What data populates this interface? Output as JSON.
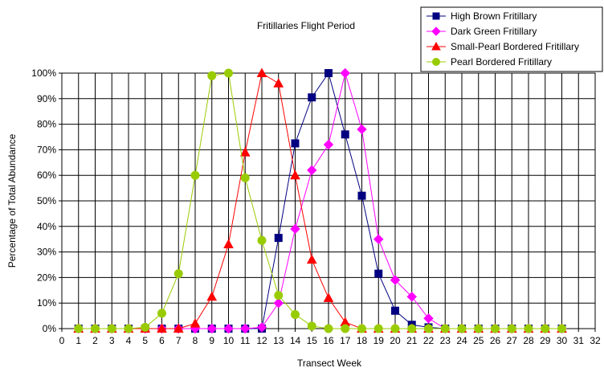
{
  "chart_data": {
    "type": "line",
    "title": "Fritillaries Flight Period",
    "xlabel": "Transect Week",
    "ylabel": "Percentage of Total Abundance",
    "xlim": [
      0,
      32
    ],
    "ylim": [
      0,
      100
    ],
    "x_ticks": [
      0,
      1,
      2,
      3,
      4,
      5,
      6,
      7,
      8,
      9,
      10,
      11,
      12,
      13,
      14,
      15,
      16,
      17,
      18,
      19,
      20,
      21,
      22,
      23,
      24,
      25,
      26,
      27,
      28,
      29,
      30,
      31,
      32
    ],
    "y_ticks": [
      0,
      10,
      20,
      30,
      40,
      50,
      60,
      70,
      80,
      90,
      100
    ],
    "y_tick_format": "percent",
    "grid": true,
    "legend_position": "top-right",
    "x": [
      1,
      2,
      3,
      4,
      5,
      6,
      7,
      8,
      9,
      10,
      11,
      12,
      13,
      14,
      15,
      16,
      17,
      18,
      19,
      20,
      21,
      22,
      23,
      24,
      25,
      26,
      27,
      28,
      29,
      30
    ],
    "series": [
      {
        "name": "High Brown Fritillary",
        "color": "#000080",
        "marker": "square",
        "values": [
          0,
          0,
          0,
          0,
          0,
          0,
          0,
          0,
          0,
          0,
          0,
          0,
          35.5,
          72.5,
          90.5,
          100,
          76,
          52,
          21.5,
          7,
          1.5,
          0.5,
          0,
          0,
          0,
          0,
          0,
          0,
          0,
          0
        ]
      },
      {
        "name": "Dark Green Fritillary",
        "color": "#ff00ff",
        "marker": "diamond",
        "values": [
          0,
          0,
          0,
          0,
          0,
          0,
          0,
          0,
          0,
          0,
          0,
          0.5,
          10,
          39,
          62,
          72,
          100,
          78,
          35,
          19,
          12.5,
          4,
          0,
          0,
          0,
          0,
          0,
          0,
          0,
          0
        ]
      },
      {
        "name": "Small-Pearl Bordered Fritillary",
        "color": "#ff0000",
        "marker": "triangle",
        "values": [
          0,
          0,
          0,
          0,
          0,
          0,
          0,
          2,
          12.5,
          33,
          69,
          100,
          96,
          60,
          27,
          12,
          2.5,
          0,
          0,
          0,
          0,
          0,
          0,
          0,
          0,
          0,
          0,
          0,
          0,
          0
        ]
      },
      {
        "name": "Pearl Bordered Fritillary",
        "color": "#99cc00",
        "marker": "circle",
        "values": [
          0,
          0,
          0,
          0,
          0.5,
          6,
          21.5,
          60,
          99,
          100,
          59,
          34.5,
          13,
          5.5,
          1,
          0,
          0,
          0,
          0,
          0,
          0,
          0,
          0,
          0,
          0,
          0,
          0,
          0,
          0,
          0
        ]
      }
    ]
  }
}
